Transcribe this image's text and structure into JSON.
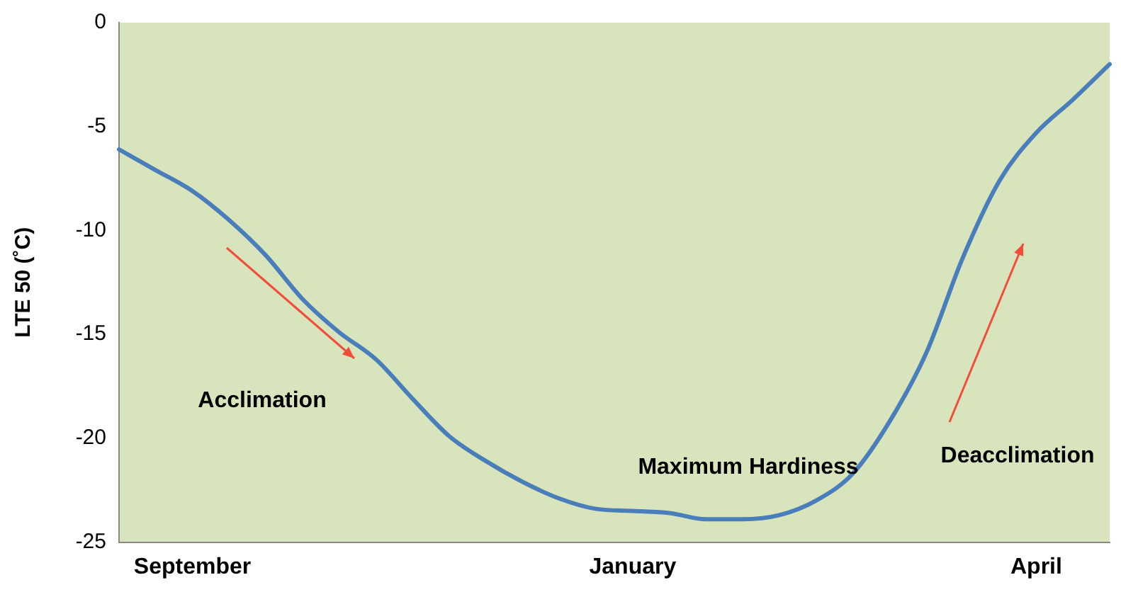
{
  "chart_data": {
    "type": "line",
    "ylabel": "LTE 50 (˚C)",
    "categories": [
      null,
      null,
      "September",
      null,
      null,
      null,
      null,
      null,
      null,
      null,
      null,
      null,
      null,
      null,
      "January",
      null,
      null,
      null,
      null,
      null,
      null,
      null,
      null,
      null,
      null,
      "April",
      null,
      null
    ],
    "series": [
      {
        "color": "#4a7ebb",
        "values": [
          -6.1,
          -7.1,
          -8.1,
          -9.5,
          -11.2,
          -13.3,
          -14.9,
          -16.2,
          -18.1,
          -19.9,
          -21.1,
          -22.1,
          -22.9,
          -23.4,
          -23.5,
          -23.6,
          -23.9,
          -23.9,
          -23.7,
          -23,
          -21.7,
          -19.2,
          -15.9,
          -11.3,
          -7.6,
          -5.3,
          -3.7,
          -2
        ]
      }
    ],
    "ylim": [
      -25,
      0
    ],
    "yticks": [
      -25,
      -20,
      -15,
      -10,
      -5,
      0
    ],
    "annotations": [
      "Acclimation",
      "Maximum Hardiness",
      "Deacclimation"
    ],
    "grid": false,
    "legend": false,
    "marker": "none",
    "line_style": "solid"
  }
}
